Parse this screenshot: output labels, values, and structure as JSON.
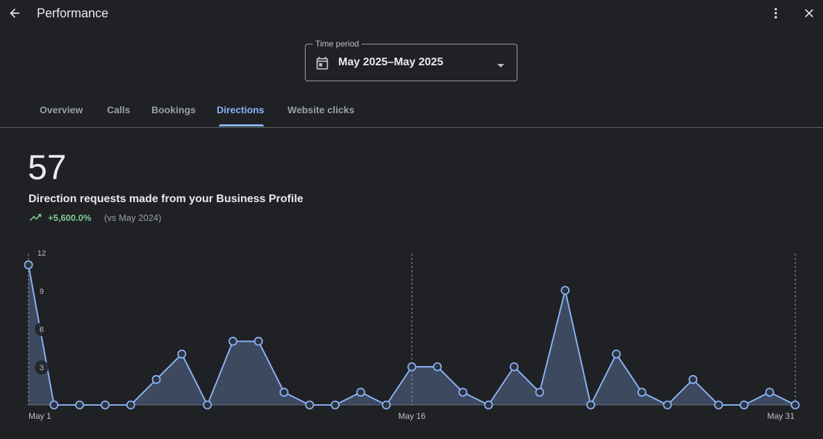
{
  "header": {
    "title": "Performance",
    "back_icon": "arrow-back-icon",
    "more_icon": "more-vert-icon",
    "close_icon": "close-icon"
  },
  "time_period": {
    "label": "Time period",
    "value": "May 2025–May 2025",
    "icon": "calendar-icon"
  },
  "tabs": [
    {
      "label": "Overview",
      "active": false
    },
    {
      "label": "Calls",
      "active": false
    },
    {
      "label": "Bookings",
      "active": false
    },
    {
      "label": "Directions",
      "active": true
    },
    {
      "label": "Website clicks",
      "active": false
    }
  ],
  "metric": {
    "total": "57",
    "description": "Direction requests made from your Business Profile",
    "change": "+5,600.0%",
    "comparison": "(vs May 2024)",
    "trend_icon": "trending-up-icon"
  },
  "colors": {
    "accent": "#8ab4f8",
    "positive": "#81c995",
    "background": "#202124"
  },
  "chart_data": {
    "type": "area",
    "x": [
      "May 1",
      "May 2",
      "May 3",
      "May 4",
      "May 5",
      "May 6",
      "May 7",
      "May 8",
      "May 9",
      "May 10",
      "May 11",
      "May 12",
      "May 13",
      "May 14",
      "May 15",
      "May 16",
      "May 17",
      "May 18",
      "May 19",
      "May 20",
      "May 21",
      "May 22",
      "May 23",
      "May 24",
      "May 25",
      "May 26",
      "May 27",
      "May 28",
      "May 29",
      "May 30",
      "May 31"
    ],
    "values": [
      11,
      0,
      0,
      0,
      0,
      2,
      4,
      0,
      5,
      5,
      1,
      0,
      0,
      1,
      0,
      3,
      3,
      1,
      0,
      3,
      1,
      9,
      0,
      4,
      1,
      0,
      2,
      0,
      0,
      1,
      0
    ],
    "x_tick_labels": [
      "May 1",
      "May 16",
      "May 31"
    ],
    "y_ticks": [
      3,
      6,
      9,
      12
    ],
    "ylim": [
      0,
      12
    ],
    "grid": "vertical dashed at labeled dates"
  }
}
